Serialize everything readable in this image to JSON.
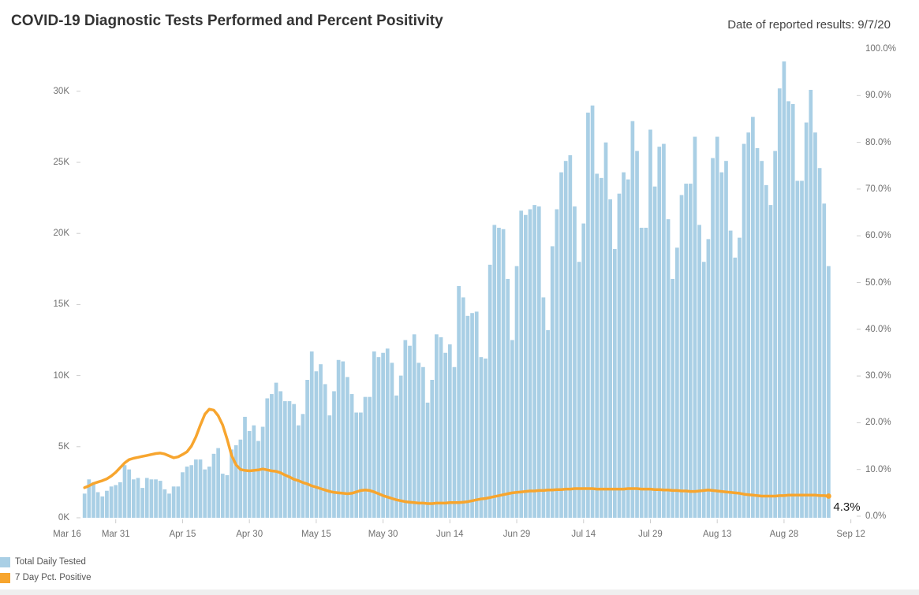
{
  "header": {
    "title": "COVID-19 Diagnostic Tests Performed and Percent Positivity",
    "date_note": "Date of reported results: 9/7/20"
  },
  "legend": {
    "items": [
      {
        "label": "Total Daily Tested",
        "color": "#A9CFE5"
      },
      {
        "label": "7 Day Pct. Positive",
        "color": "#F7A52E"
      }
    ]
  },
  "chart_data": {
    "type": "combo_bar_line",
    "title": "COVID-19 Diagnostic Tests Performed and Percent Positivity",
    "x_axis": {
      "tick_labels": [
        "Mar 16",
        "Mar 31",
        "Apr 15",
        "Apr 30",
        "May 15",
        "May 30",
        "Jun 14",
        "Jun 29",
        "Jul 14",
        "Jul 29",
        "Aug 13",
        "Aug 28",
        "Sep 12"
      ],
      "tick_interval_days": 15,
      "start": "3/16/20",
      "end": "9/12/20"
    },
    "y_axis_left": {
      "tick_labels": [
        "0K",
        "5K",
        "10K",
        "15K",
        "20K",
        "25K",
        "30K"
      ],
      "tick_values": [
        0,
        5000,
        10000,
        15000,
        20000,
        25000,
        30000
      ],
      "range": [
        0,
        33000
      ],
      "grid": false
    },
    "y_axis_right": {
      "tick_labels": [
        "0.0%",
        "10.0%",
        "20.0%",
        "30.0%",
        "40.0%",
        "50.0%",
        "60.0%",
        "70.0%",
        "80.0%",
        "90.0%",
        "100.0%"
      ],
      "tick_values_pct": [
        0,
        10,
        20,
        30,
        40,
        50,
        60,
        70,
        80,
        90,
        100
      ],
      "range_pct": [
        0,
        100
      ]
    },
    "first_bar_date": "3/24/20",
    "last_bar_date": "9/7/20",
    "end_label": "4.3%",
    "legend_position": "bottom-left",
    "series": [
      {
        "name": "Total Daily Tested",
        "type": "bar",
        "axis": "left",
        "color": "#A9CFE5",
        "values": [
          1700,
          2700,
          2500,
          1800,
          1500,
          1900,
          2200,
          2300,
          2500,
          3700,
          3400,
          2700,
          2800,
          2100,
          2800,
          2700,
          2700,
          2600,
          2000,
          1700,
          2200,
          2200,
          3200,
          3600,
          3700,
          4100,
          4100,
          3400,
          3600,
          4500,
          4900,
          3100,
          3000,
          4800,
          5100,
          5500,
          7100,
          6100,
          6500,
          5400,
          6400,
          8400,
          8700,
          9500,
          8900,
          8200,
          8200,
          8000,
          6500,
          7300,
          9700,
          11700,
          10300,
          10800,
          9400,
          7200,
          8900,
          11100,
          11000,
          9900,
          8700,
          7400,
          7400,
          8500,
          8500,
          11700,
          11300,
          11600,
          11900,
          10900,
          8600,
          10000,
          12500,
          12100,
          12900,
          10900,
          10600,
          8100,
          9700,
          12900,
          12700,
          11600,
          12200,
          10600,
          16300,
          15500,
          14200,
          14400,
          14500,
          11300,
          11200,
          17800,
          20600,
          20400,
          20300,
          16800,
          12500,
          17700,
          21600,
          21300,
          21700,
          22000,
          21900,
          15500,
          13200,
          19100,
          21700,
          24300,
          25100,
          25500,
          21900,
          18000,
          20700,
          28500,
          29000,
          24200,
          23900,
          26400,
          22400,
          18900,
          22800,
          24300,
          23800,
          27900,
          25800,
          20400,
          20400,
          27300,
          23300,
          26100,
          26300,
          21000,
          16800,
          19000,
          22700,
          23500,
          23500,
          26800,
          20600,
          18000,
          19600,
          25300,
          26800,
          24300,
          25100,
          20200,
          18300,
          19700,
          26300,
          27100,
          28200,
          26000,
          25100,
          23400,
          22000,
          25800,
          30200,
          32100,
          29300,
          29100,
          23700,
          23700,
          27800,
          30100,
          27100,
          24600,
          22100,
          17700
        ]
      },
      {
        "name": "7 Day Pct. Positive",
        "type": "line",
        "axis": "right",
        "color": "#F7A52E",
        "values_pct": [
          6.1,
          6.5,
          7.0,
          7.3,
          7.6,
          8.0,
          8.6,
          9.4,
          10.4,
          11.4,
          12.1,
          12.4,
          12.6,
          12.8,
          13.0,
          13.2,
          13.4,
          13.5,
          13.3,
          12.9,
          12.5,
          12.7,
          13.2,
          13.8,
          15.0,
          17.0,
          19.5,
          21.8,
          22.9,
          22.7,
          21.5,
          19.5,
          16.5,
          13.0,
          11.0,
          10.0,
          9.8,
          9.7,
          9.8,
          9.9,
          10.1,
          9.9,
          9.7,
          9.6,
          9.3,
          8.8,
          8.4,
          7.9,
          7.6,
          7.2,
          6.9,
          6.5,
          6.2,
          5.9,
          5.6,
          5.3,
          5.1,
          5.0,
          4.9,
          4.8,
          4.9,
          5.2,
          5.5,
          5.6,
          5.5,
          5.2,
          4.8,
          4.4,
          4.1,
          3.8,
          3.5,
          3.3,
          3.1,
          3.0,
          2.9,
          2.8,
          2.8,
          2.7,
          2.7,
          2.8,
          2.8,
          2.8,
          2.9,
          2.9,
          2.9,
          3.0,
          3.1,
          3.3,
          3.5,
          3.7,
          3.8,
          4.0,
          4.2,
          4.4,
          4.6,
          4.8,
          5.0,
          5.1,
          5.2,
          5.3,
          5.4,
          5.4,
          5.5,
          5.5,
          5.6,
          5.6,
          5.7,
          5.7,
          5.8,
          5.8,
          5.9,
          5.9,
          5.9,
          5.9,
          5.9,
          5.8,
          5.8,
          5.8,
          5.8,
          5.8,
          5.8,
          5.8,
          5.9,
          5.9,
          5.9,
          5.8,
          5.8,
          5.8,
          5.7,
          5.7,
          5.6,
          5.6,
          5.5,
          5.5,
          5.4,
          5.4,
          5.3,
          5.3,
          5.4,
          5.5,
          5.6,
          5.5,
          5.4,
          5.3,
          5.2,
          5.1,
          5.0,
          4.9,
          4.7,
          4.6,
          4.5,
          4.4,
          4.3,
          4.3,
          4.3,
          4.3,
          4.4,
          4.4,
          4.5,
          4.5,
          4.5,
          4.5,
          4.5,
          4.5,
          4.5,
          4.4,
          4.4,
          4.3
        ]
      }
    ]
  }
}
